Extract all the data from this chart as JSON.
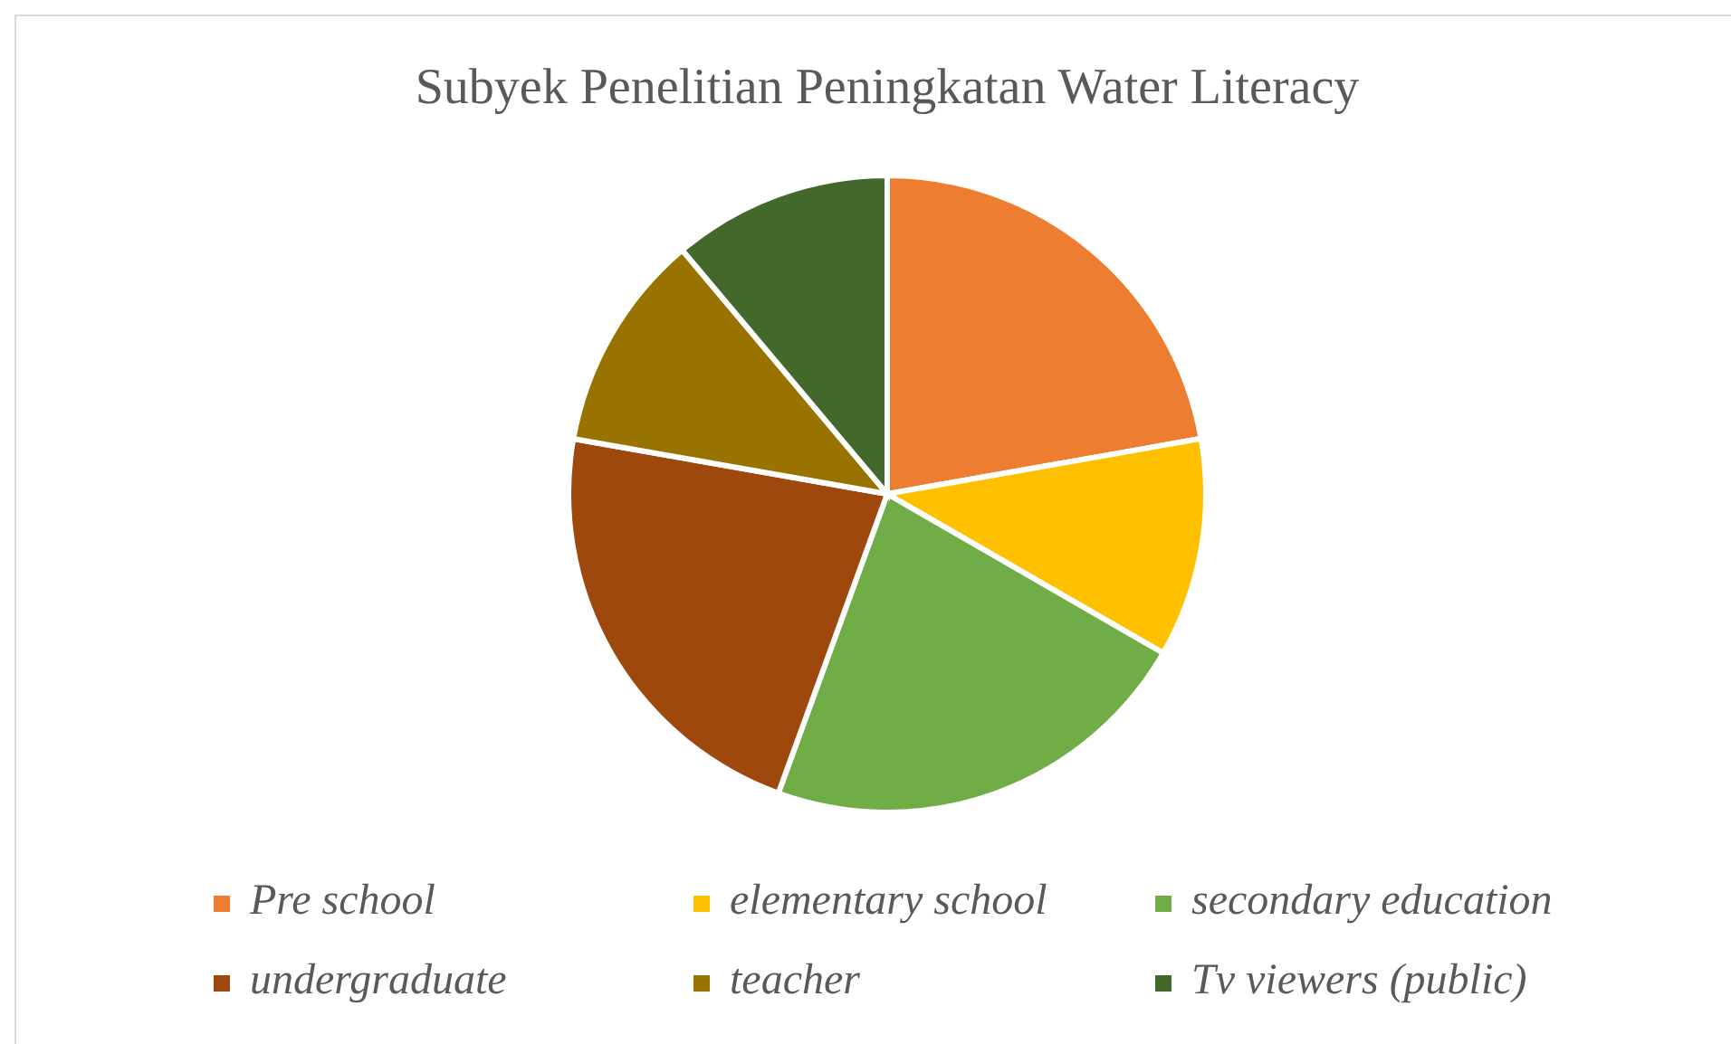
{
  "chart_data": {
    "type": "pie",
    "title": "Subyek Penelitian Peningkatan Water Literacy",
    "categories": [
      "Pre school",
      "elementary school",
      "secondary education",
      "undergraduate",
      "teacher",
      "Tv viewers (public)"
    ],
    "values": [
      22.22,
      11.11,
      22.22,
      22.22,
      11.11,
      11.12
    ],
    "colors": [
      "#ed7d31",
      "#ffc000",
      "#70ad47",
      "#9e480e",
      "#997300",
      "#43682b"
    ],
    "legend": "bottom"
  }
}
